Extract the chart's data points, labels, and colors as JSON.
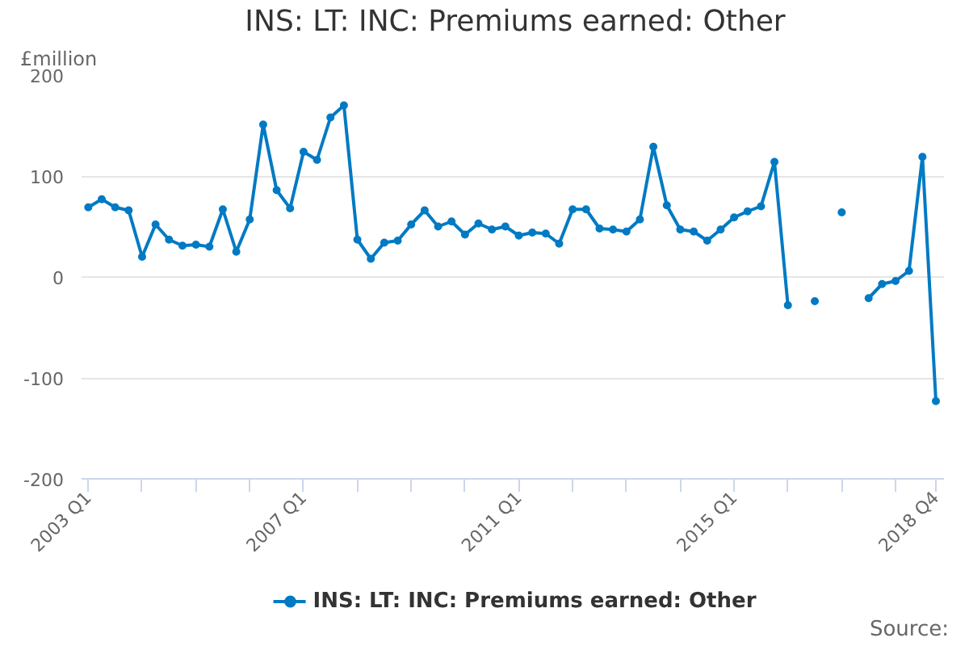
{
  "chart_data": {
    "type": "line",
    "title": "INS: LT: INC: Premiums earned: Other",
    "ylabel": "£million",
    "categories": [
      "2003 Q1",
      null,
      null,
      null,
      null,
      null,
      null,
      null,
      null,
      null,
      null,
      null,
      null,
      null,
      null,
      null,
      "2007 Q1",
      null,
      null,
      null,
      null,
      null,
      null,
      null,
      null,
      null,
      null,
      null,
      null,
      null,
      null,
      null,
      "2011 Q1",
      null,
      null,
      null,
      null,
      null,
      null,
      null,
      null,
      null,
      null,
      null,
      null,
      null,
      null,
      null,
      "2015 Q1",
      null,
      null,
      null,
      null,
      null,
      null,
      null,
      null,
      null,
      null,
      null,
      null,
      null,
      null,
      "2018 Q4"
    ],
    "series": [
      {
        "name": "INS: LT: INC: Premiums earned: Other",
        "color": "#007ac3",
        "values": [
          69,
          77,
          69,
          66,
          20,
          52,
          37,
          31,
          32,
          30,
          67,
          25,
          57,
          151,
          86,
          68,
          124,
          116,
          158,
          170,
          37,
          18,
          34,
          36,
          52,
          66,
          50,
          55,
          42,
          53,
          47,
          50,
          41,
          44,
          43,
          33,
          67,
          67,
          48,
          47,
          45,
          57,
          129,
          71,
          47,
          45,
          36,
          47,
          59,
          65,
          70,
          114,
          -28,
          null,
          -24,
          null,
          64,
          null,
          -21,
          -7,
          -4,
          6,
          119,
          -123
        ]
      }
    ],
    "ylim": [
      -200,
      200
    ],
    "yticks": [
      -200,
      -100,
      0,
      100,
      200
    ],
    "grid": "y",
    "legend": "bottom",
    "marker": "circle",
    "line_style": "solid",
    "annotations": [
      "Source:"
    ]
  }
}
